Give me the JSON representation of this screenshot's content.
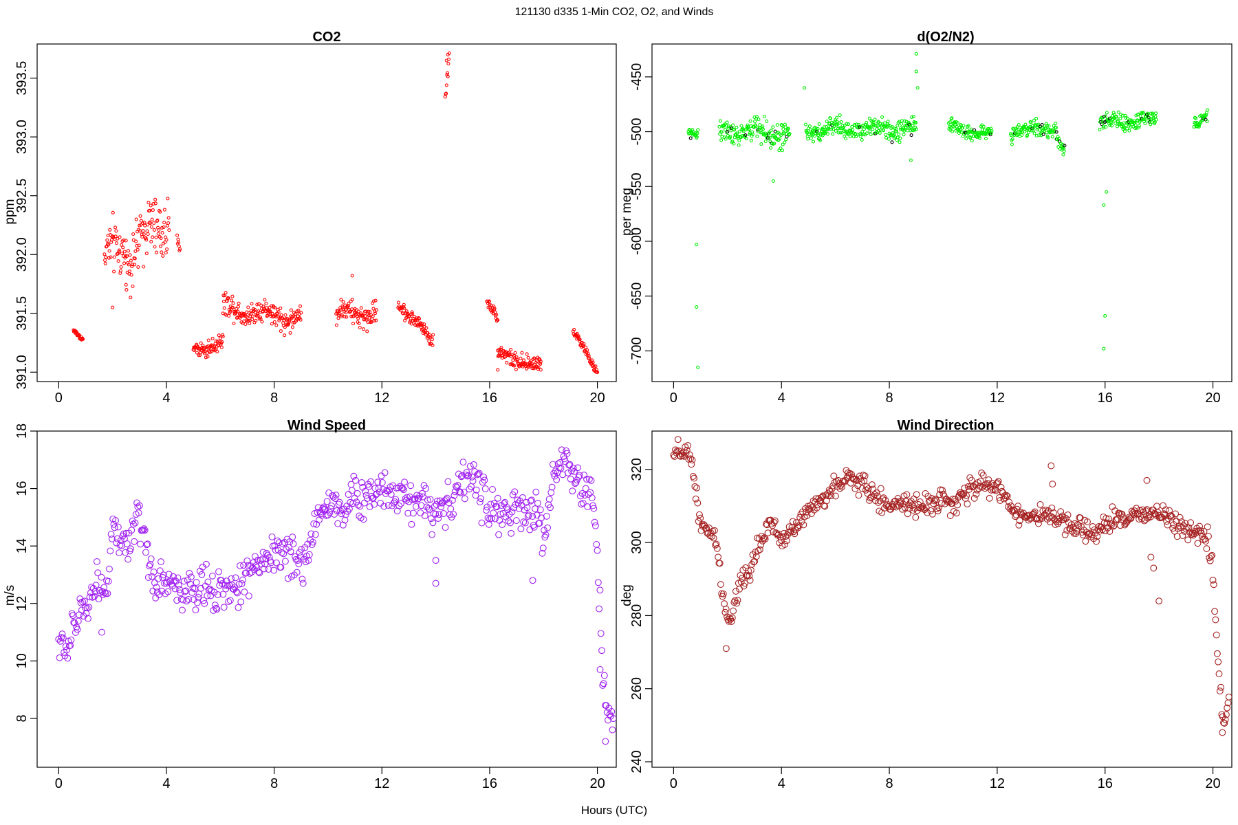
{
  "figure": {
    "suptitle": "121130   d335   1-Min CO2, O2, and Winds",
    "xlabel": "Hours (UTC)"
  },
  "chart_data": [
    {
      "id": "co2",
      "type": "scatter",
      "title": "CO2",
      "xlabel": "",
      "ylabel": "ppm",
      "xlim": [
        -0.8,
        20.7
      ],
      "ylim": [
        390.92,
        393.79
      ],
      "xticks": [
        0,
        4,
        8,
        12,
        16,
        20
      ],
      "yticks": [
        391.0,
        391.5,
        392.0,
        392.5,
        393.0,
        393.5
      ],
      "ytick_labels": [
        "391.0",
        "391.5",
        "392.0",
        "392.5",
        "393.0",
        "393.5"
      ],
      "color": "#ff0000",
      "marker_size": "small",
      "segments": [
        {
          "x": [
            0.55,
            0.9
          ],
          "mean": 391.3,
          "trend": [
            391.35,
            391.28
          ],
          "noise": 0.02
        },
        {
          "x": [
            1.7,
            2.5
          ],
          "mean": 392.0,
          "trend": [
            391.95,
            392.1
          ],
          "noise": 0.18
        },
        {
          "x": [
            2.5,
            4.1
          ],
          "mean": 392.05,
          "trend": [
            392.0,
            392.3
          ],
          "noise": 0.2
        },
        {
          "x": [
            4.4,
            4.5
          ],
          "mean": 392.1,
          "trend": [
            392.12,
            392.05
          ],
          "noise": 0.03
        },
        {
          "x": [
            5.0,
            6.1
          ],
          "mean": 391.28,
          "trend": [
            391.2,
            391.25
          ],
          "noise": 0.06
        },
        {
          "x": [
            6.1,
            9.0
          ],
          "mean": 391.55,
          "trend": [
            391.55,
            391.45
          ],
          "noise": 0.08
        },
        {
          "x": [
            10.3,
            11.8
          ],
          "mean": 391.5,
          "trend": [
            391.5,
            391.5
          ],
          "noise": 0.08
        },
        {
          "x": [
            12.6,
            13.9
          ],
          "mean": 391.45,
          "trend": [
            391.6,
            391.25
          ],
          "noise": 0.05
        },
        {
          "x": [
            14.35,
            14.5
          ],
          "mean": 393.5,
          "trend": [
            393.35,
            393.7
          ],
          "noise": 0.05
        },
        {
          "x": [
            15.9,
            16.3
          ],
          "mean": 391.5,
          "trend": [
            391.62,
            391.45
          ],
          "noise": 0.03
        },
        {
          "x": [
            16.3,
            17.9
          ],
          "mean": 391.15,
          "trend": [
            391.15,
            391.05
          ],
          "noise": 0.06
        },
        {
          "x": [
            19.1,
            20.0
          ],
          "mean": 391.05,
          "trend": [
            391.35,
            391.0
          ],
          "noise": 0.03
        }
      ],
      "points": [
        {
          "x": 14.45,
          "y": 393.7
        },
        {
          "x": 14.4,
          "y": 393.65
        },
        {
          "x": 2.0,
          "y": 391.55
        },
        {
          "x": 16.3,
          "y": 391.02
        },
        {
          "x": 17.9,
          "y": 391.02
        },
        {
          "x": 10.9,
          "y": 391.82
        }
      ]
    },
    {
      "id": "o2n2",
      "type": "scatter",
      "title": "d(O2/N2)",
      "xlabel": "",
      "ylabel": "per meg",
      "xlim": [
        -0.8,
        20.7
      ],
      "ylim": [
        -728,
        -420
      ],
      "xticks": [
        0,
        4,
        8,
        12,
        16,
        20
      ],
      "yticks": [
        -700,
        -650,
        -600,
        -550,
        -500,
        -450
      ],
      "ytick_labels": [
        "-700",
        "-650",
        "-600",
        "-550",
        "-500",
        "-450"
      ],
      "color": "#00ee00",
      "accent_color": "#000000",
      "marker_size": "small",
      "segments": [
        {
          "x": [
            0.55,
            0.9
          ],
          "mean": -500,
          "trend": [
            -500,
            -500
          ],
          "noise": 4
        },
        {
          "x": [
            1.7,
            4.3
          ],
          "mean": -502,
          "trend": [
            -500,
            -502
          ],
          "noise": 9
        },
        {
          "x": [
            4.9,
            9.0
          ],
          "mean": -498,
          "trend": [
            -498,
            -497
          ],
          "noise": 7
        },
        {
          "x": [
            10.2,
            11.8
          ],
          "mean": -499,
          "trend": [
            -496,
            -502
          ],
          "noise": 5
        },
        {
          "x": [
            12.5,
            14.2
          ],
          "mean": -500,
          "trend": [
            -500,
            -496
          ],
          "noise": 6
        },
        {
          "x": [
            14.2,
            14.5
          ],
          "mean": -512,
          "trend": [
            -505,
            -518
          ],
          "noise": 4
        },
        {
          "x": [
            15.8,
            17.9
          ],
          "mean": -490,
          "trend": [
            -492,
            -489
          ],
          "noise": 6
        },
        {
          "x": [
            19.3,
            19.8
          ],
          "mean": -488,
          "trend": [
            -495,
            -484
          ],
          "noise": 4
        }
      ],
      "points": [
        {
          "x": 0.85,
          "y": -603
        },
        {
          "x": 0.85,
          "y": -660
        },
        {
          "x": 0.9,
          "y": -715
        },
        {
          "x": 9.0,
          "y": -429
        },
        {
          "x": 9.0,
          "y": -445
        },
        {
          "x": 9.05,
          "y": -460
        },
        {
          "x": 16.05,
          "y": -555
        },
        {
          "x": 15.95,
          "y": -567
        },
        {
          "x": 16.0,
          "y": -668
        },
        {
          "x": 15.95,
          "y": -698
        },
        {
          "x": 3.7,
          "y": -545
        },
        {
          "x": 4.85,
          "y": -460
        },
        {
          "x": 8.8,
          "y": -526
        },
        {
          "x": 14.45,
          "y": -521
        }
      ]
    },
    {
      "id": "wind_speed",
      "type": "scatter",
      "title": "Wind Speed",
      "xlabel": "",
      "ylabel": "m/s",
      "xlim": [
        -0.8,
        20.7
      ],
      "ylim": [
        6.3,
        18.0
      ],
      "xticks": [
        0,
        4,
        8,
        12,
        16,
        20
      ],
      "yticks": [
        8,
        10,
        12,
        14,
        16,
        18
      ],
      "ytick_labels": [
        "8",
        "10",
        "12",
        "14",
        "16",
        "18"
      ],
      "color": "#a020f0",
      "marker_size": "large",
      "curve": {
        "x": [
          0.0,
          0.3,
          0.6,
          1.0,
          1.4,
          1.8,
          2.0,
          2.3,
          2.6,
          2.9,
          3.2,
          3.5,
          4.0,
          4.5,
          5.0,
          5.5,
          6.0,
          6.4,
          7.0,
          7.5,
          8.0,
          8.5,
          9.0,
          9.3,
          9.7,
          10.0,
          10.5,
          11.0,
          11.5,
          12.0,
          12.5,
          13.0,
          13.5,
          14.0,
          14.5,
          15.0,
          15.3,
          15.6,
          16.0,
          16.5,
          17.0,
          17.5,
          17.8,
          18.0,
          18.3,
          18.6,
          18.9,
          19.2,
          19.5,
          19.8,
          20.0,
          20.2,
          20.4,
          20.6
        ],
        "y": [
          10.6,
          10.4,
          11.2,
          12.0,
          12.7,
          12.6,
          14.7,
          14.0,
          13.8,
          15.0,
          14.0,
          12.8,
          12.8,
          12.5,
          12.3,
          12.6,
          12.5,
          12.3,
          13.0,
          13.5,
          13.8,
          13.7,
          13.3,
          14.0,
          15.2,
          15.5,
          15.3,
          15.6,
          15.8,
          16.0,
          15.9,
          15.7,
          15.5,
          15.3,
          15.5,
          16.2,
          16.5,
          16.0,
          15.3,
          15.1,
          15.2,
          15.0,
          15.3,
          14.0,
          16.0,
          16.8,
          17.1,
          16.3,
          15.9,
          15.8,
          14.0,
          9.5,
          8.0,
          8.4
        ],
        "noise": 0.35,
        "step": 0.033
      },
      "points": [
        {
          "x": 14.0,
          "y": 12.7
        },
        {
          "x": 14.0,
          "y": 13.5
        },
        {
          "x": 1.6,
          "y": 11.0
        },
        {
          "x": 20.3,
          "y": 7.2
        },
        {
          "x": 20.1,
          "y": 9.7
        },
        {
          "x": 17.6,
          "y": 12.8
        }
      ]
    },
    {
      "id": "wind_direction",
      "type": "scatter",
      "title": "Wind Direction",
      "xlabel": "",
      "ylabel": "deg",
      "xlim": [
        -0.8,
        20.7
      ],
      "ylim": [
        238.5,
        330.5
      ],
      "xticks": [
        0,
        4,
        8,
        12,
        16,
        20
      ],
      "yticks": [
        240,
        260,
        280,
        300,
        320
      ],
      "ytick_labels": [
        "240",
        "260",
        "280",
        "300",
        "320"
      ],
      "color": "#a52020",
      "marker_size": "large",
      "curve": {
        "x": [
          0.0,
          0.2,
          0.5,
          0.7,
          0.9,
          1.1,
          1.3,
          1.6,
          1.8,
          2.0,
          2.2,
          2.5,
          2.7,
          3.0,
          3.3,
          3.6,
          4.0,
          4.5,
          5.0,
          5.5,
          6.0,
          6.5,
          7.0,
          7.5,
          8.0,
          8.5,
          9.0,
          9.5,
          10.0,
          10.5,
          11.0,
          11.5,
          12.0,
          12.5,
          13.0,
          13.5,
          14.0,
          14.5,
          15.0,
          15.5,
          16.0,
          16.5,
          17.0,
          17.5,
          17.8,
          18.0,
          18.5,
          19.0,
          19.5,
          19.8,
          20.0,
          20.2,
          20.4,
          20.6
        ],
        "y": [
          323,
          325,
          324,
          321,
          310,
          303,
          303,
          300,
          286,
          277,
          282,
          290,
          290,
          296,
          301,
          305,
          301,
          304,
          309,
          312,
          315,
          318,
          316,
          312,
          310,
          311,
          310,
          311,
          312,
          310,
          315,
          316,
          315,
          310,
          307,
          307,
          307,
          305,
          304,
          302,
          305,
          306,
          307,
          308,
          309,
          307,
          307,
          304,
          302,
          301,
          290,
          265,
          250,
          256
        ],
        "noise": 1.4,
        "step": 0.033
      },
      "points": [
        {
          "x": 14.0,
          "y": 321
        },
        {
          "x": 14.05,
          "y": 316
        },
        {
          "x": 17.55,
          "y": 317
        },
        {
          "x": 18.0,
          "y": 284
        },
        {
          "x": 17.8,
          "y": 293
        },
        {
          "x": 17.7,
          "y": 296
        },
        {
          "x": 1.95,
          "y": 271
        },
        {
          "x": 20.35,
          "y": 248
        }
      ]
    }
  ]
}
